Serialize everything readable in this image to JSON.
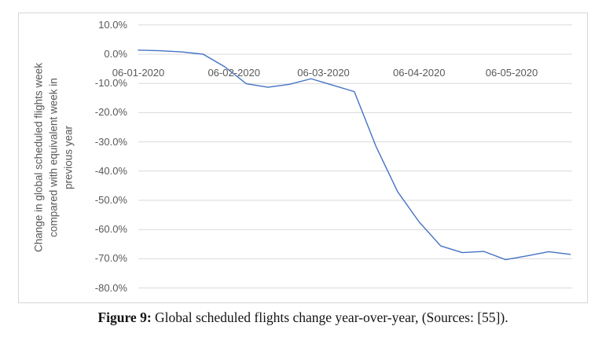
{
  "caption": {
    "label": "Figure 9:",
    "text": " Global scheduled flights change year-over-year, (Sources: [55])."
  },
  "chart_data": {
    "type": "line",
    "title": "",
    "xlabel": "",
    "ylabel": "Change in global scheduled flights week compared with equivalent week in previous year",
    "ylabel_display": "Change in global scheduled flights week\ncompared with equivalent week in\nprevious year",
    "ylim": [
      -80,
      10
    ],
    "grid": true,
    "legend_position": "none",
    "line_color": "#4472C4",
    "gridline_color": "#d9d9d9",
    "tick_text_color": "#595959",
    "y_ticks": [
      {
        "label": "10.0%",
        "value": 10
      },
      {
        "label": "0.0%",
        "value": 0
      },
      {
        "label": "-10.0%",
        "value": -10
      },
      {
        "label": "-20.0%",
        "value": -20
      },
      {
        "label": "-30.0%",
        "value": -30
      },
      {
        "label": "-40.0%",
        "value": -40
      },
      {
        "label": "-50.0%",
        "value": -50
      },
      {
        "label": "-60.0%",
        "value": -60
      },
      {
        "label": "-70.0%",
        "value": -70
      },
      {
        "label": "-80.0%",
        "value": -80
      }
    ],
    "x_ticks": [
      {
        "label": "06-01-2020",
        "date": "06-01-2020"
      },
      {
        "label": "06-02-2020",
        "date": "06-02-2020"
      },
      {
        "label": "06-03-2020",
        "date": "06-03-2020"
      },
      {
        "label": "06-04-2020",
        "date": "06-04-2020"
      },
      {
        "label": "06-05-2020",
        "date": "06-05-2020"
      }
    ],
    "series": [
      {
        "name": "Change in global scheduled flights week vs equivalent week previous year",
        "points": [
          {
            "date": "06-01-2020",
            "value": 1.4
          },
          {
            "date": "13-01-2020",
            "value": 1.2
          },
          {
            "date": "20-01-2020",
            "value": 0.8
          },
          {
            "date": "27-01-2020",
            "value": 0.0
          },
          {
            "date": "03-02-2020",
            "value": -4.3
          },
          {
            "date": "10-02-2020",
            "value": -10.1
          },
          {
            "date": "17-02-2020",
            "value": -11.3
          },
          {
            "date": "24-02-2020",
            "value": -10.3
          },
          {
            "date": "02-03-2020",
            "value": -8.4
          },
          {
            "date": "09-03-2020",
            "value": -10.6
          },
          {
            "date": "16-03-2020",
            "value": -12.8
          },
          {
            "date": "23-03-2020",
            "value": -31.5
          },
          {
            "date": "30-03-2020",
            "value": -47.0
          },
          {
            "date": "06-04-2020",
            "value": -57.4
          },
          {
            "date": "13-04-2020",
            "value": -65.6
          },
          {
            "date": "20-04-2020",
            "value": -67.9
          },
          {
            "date": "27-04-2020",
            "value": -67.5
          },
          {
            "date": "04-05-2020",
            "value": -70.3
          },
          {
            "date": "11-05-2020",
            "value": -69.0
          },
          {
            "date": "18-05-2020",
            "value": -67.6
          },
          {
            "date": "25-05-2020",
            "value": -68.5
          }
        ]
      }
    ]
  }
}
